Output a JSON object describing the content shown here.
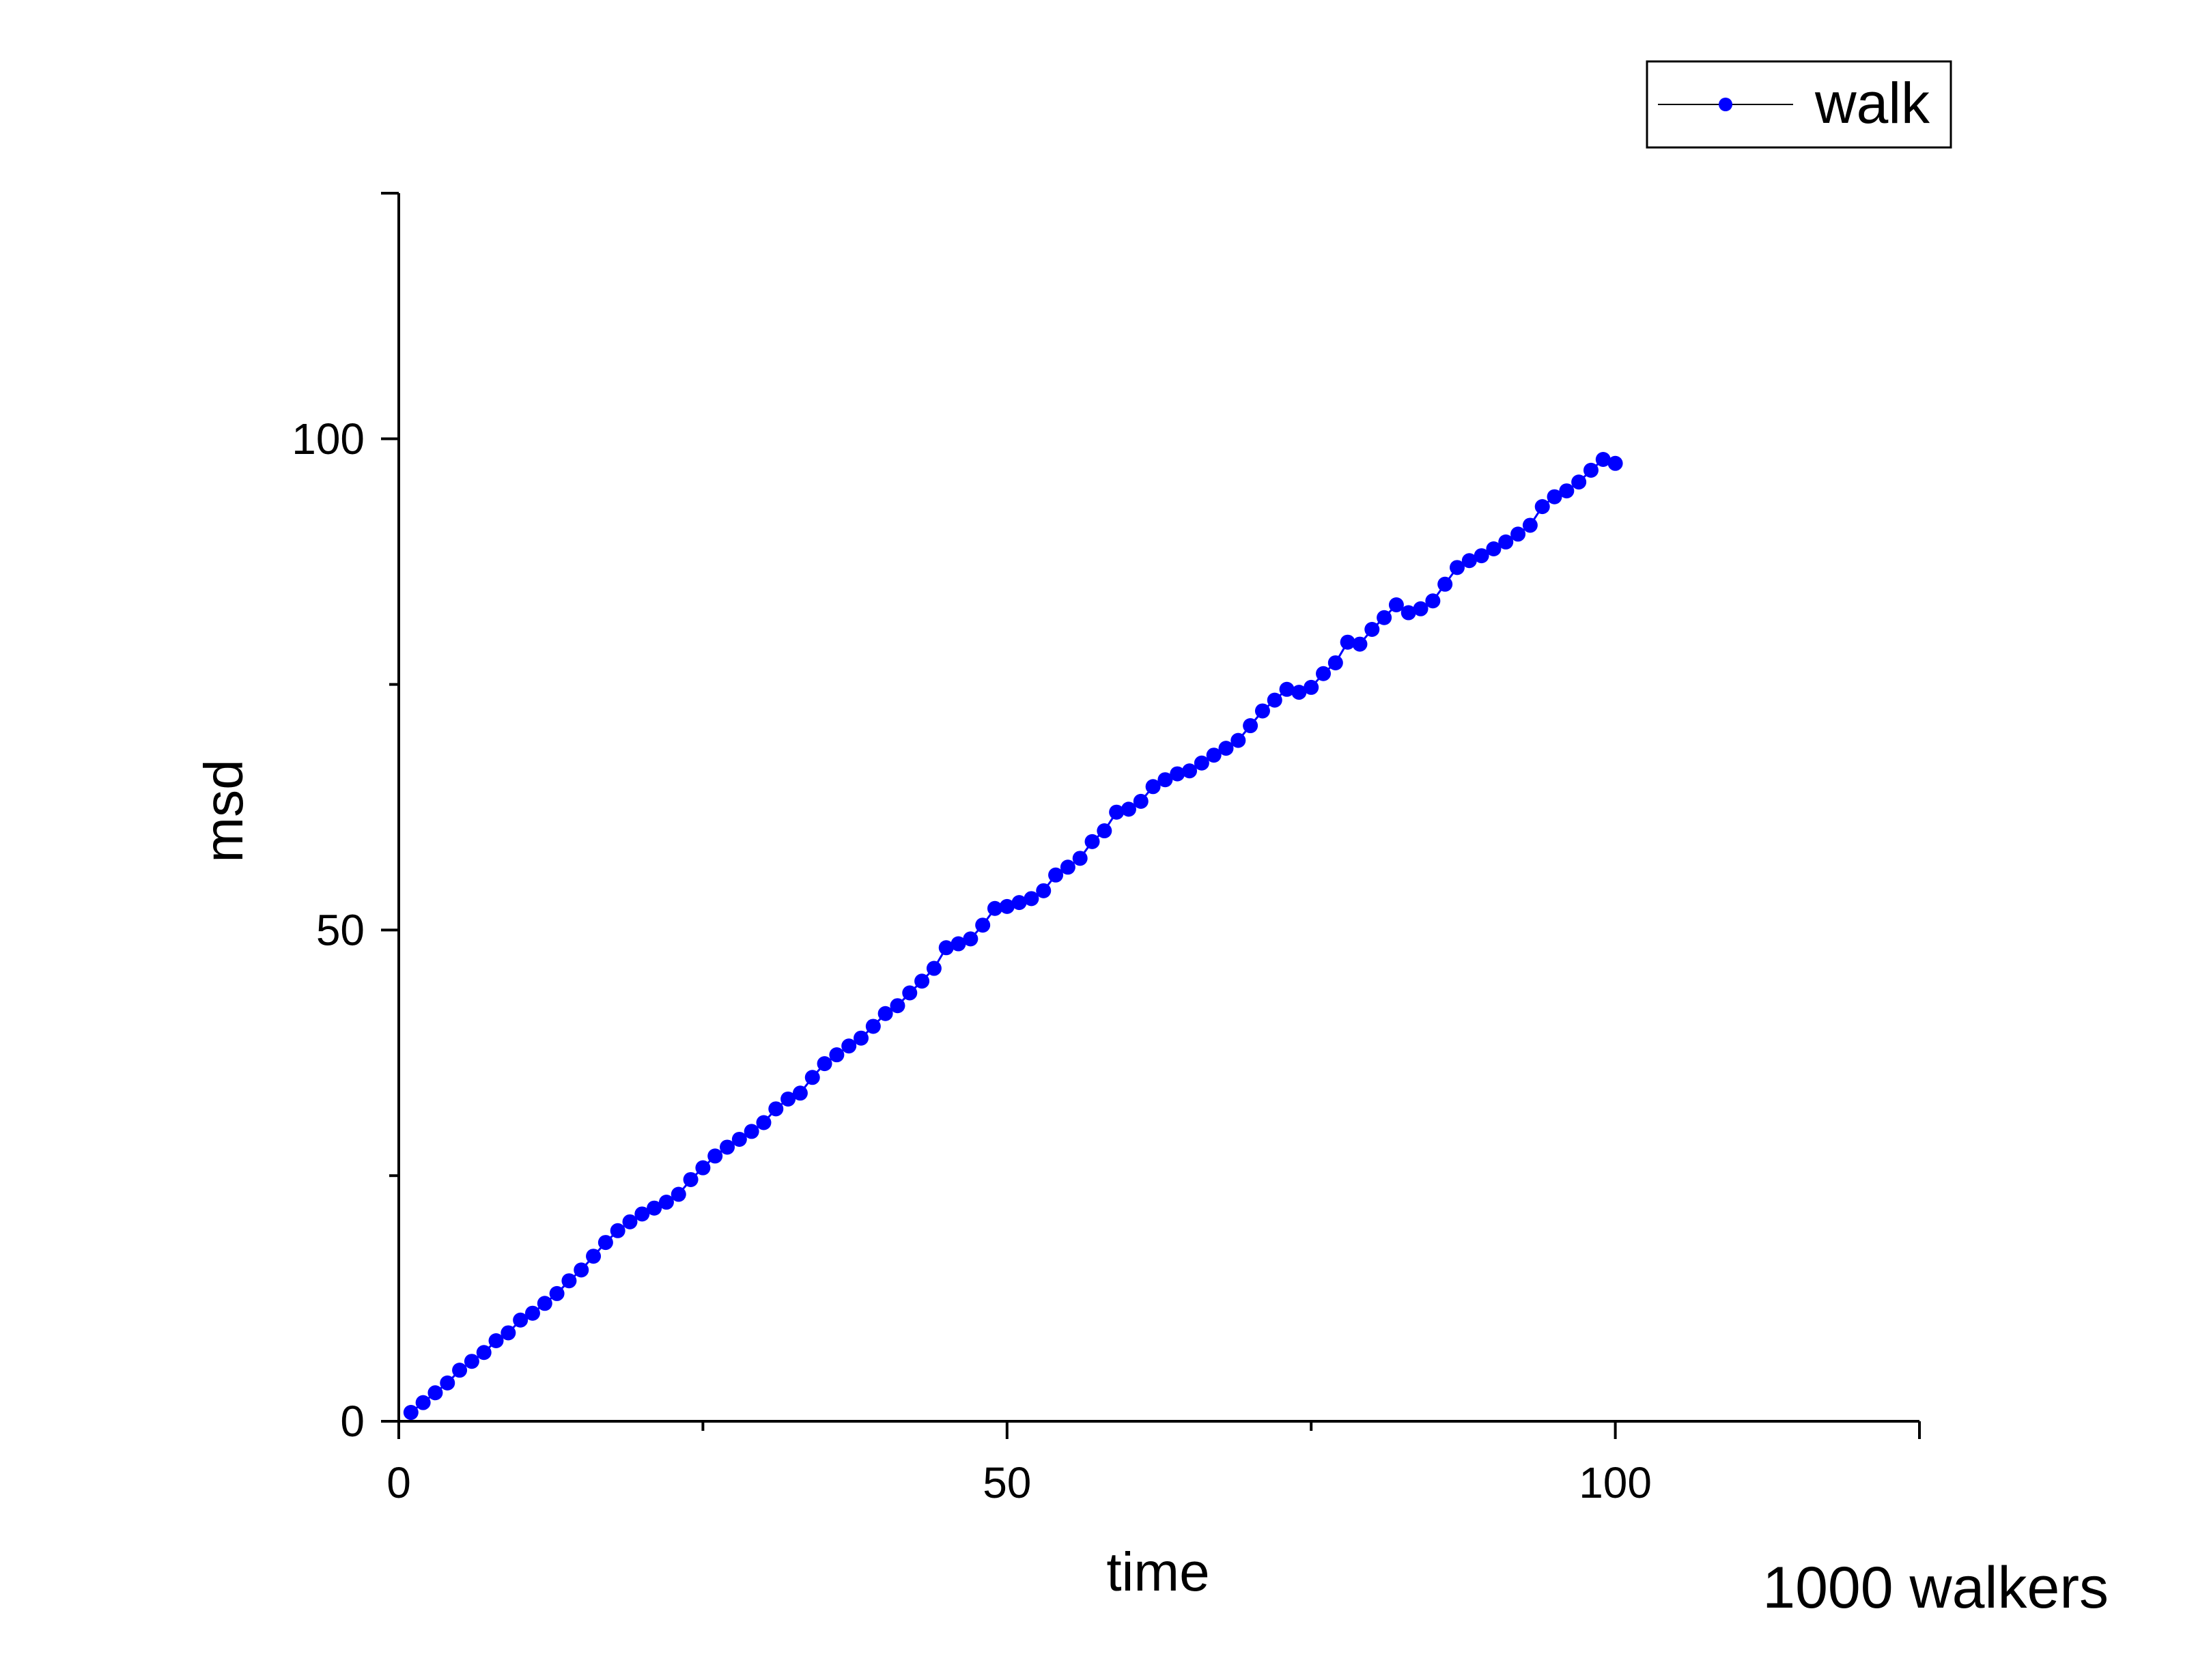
{
  "chart_data": {
    "type": "scatter",
    "xlabel": "time",
    "ylabel": "msd",
    "annotation": "1000 walkers",
    "xlim": [
      0,
      125
    ],
    "ylim": [
      0,
      125
    ],
    "xticks": [
      0,
      50,
      100
    ],
    "yticks": [
      0,
      50,
      100
    ],
    "grid": false,
    "legend_position": "top-right",
    "series": [
      {
        "name": "walk",
        "color": "#0000ff",
        "marker": "circle",
        "x": [
          1,
          2,
          3,
          4,
          5,
          6,
          7,
          8,
          9,
          10,
          11,
          12,
          13,
          14,
          15,
          16,
          17,
          18,
          19,
          20,
          21,
          22,
          23,
          24,
          25,
          26,
          27,
          28,
          29,
          30,
          31,
          32,
          33,
          34,
          35,
          36,
          37,
          38,
          39,
          40,
          41,
          42,
          43,
          44,
          45,
          46,
          47,
          48,
          49,
          50,
          51,
          52,
          53,
          54,
          55,
          56,
          57,
          58,
          59,
          60,
          61,
          62,
          63,
          64,
          65,
          66,
          67,
          68,
          69,
          70,
          71,
          72,
          73,
          74,
          75,
          76,
          77,
          78,
          79,
          80,
          81,
          82,
          83,
          84,
          85,
          86,
          87,
          88,
          89,
          90,
          91,
          92,
          93,
          94,
          95,
          96,
          97,
          98,
          99,
          100
        ],
        "values": [
          0.9,
          1.9,
          2.9,
          3.9,
          5.2,
          6.1,
          7.0,
          8.2,
          9.0,
          10.3,
          11.0,
          12.0,
          13.0,
          14.3,
          15.4,
          16.8,
          18.2,
          19.4,
          20.3,
          21.1,
          21.7,
          22.3,
          23.1,
          24.6,
          25.8,
          27.0,
          27.9,
          28.7,
          29.5,
          30.4,
          31.8,
          32.8,
          33.4,
          35.0,
          36.4,
          37.3,
          38.2,
          39.0,
          40.2,
          41.5,
          42.3,
          43.6,
          44.8,
          46.1,
          48.2,
          48.6,
          49.1,
          50.5,
          52.2,
          52.4,
          52.8,
          53.2,
          54.0,
          55.6,
          56.4,
          57.3,
          59.0,
          60.1,
          62.0,
          62.3,
          63.1,
          64.6,
          65.3,
          65.9,
          66.2,
          67.0,
          67.8,
          68.5,
          69.3,
          70.8,
          72.3,
          73.4,
          74.5,
          74.2,
          74.7,
          76.1,
          77.2,
          79.3,
          79.1,
          80.6,
          81.8,
          83.1,
          82.3,
          82.7,
          83.5,
          85.2,
          86.9,
          87.6,
          88.1,
          88.8,
          89.5,
          90.3,
          91.2,
          93.1,
          94.1,
          94.7,
          95.6,
          96.8,
          97.9,
          97.5
        ]
      }
    ]
  }
}
